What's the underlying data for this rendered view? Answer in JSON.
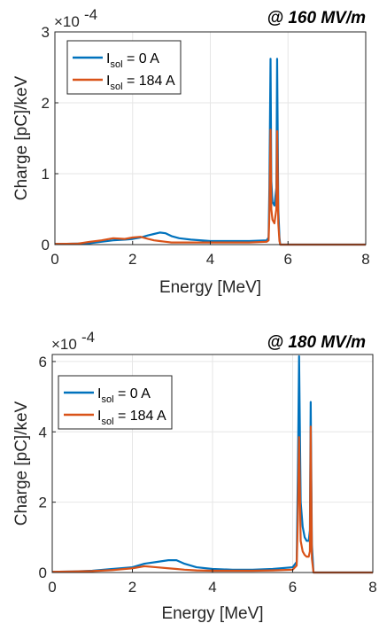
{
  "chart_data": [
    {
      "type": "line",
      "title": "@ 160 MV/m",
      "xlabel": "Energy [MeV]",
      "ylabel": "Charge [pC]/keV",
      "exponent_label": "×10",
      "exponent_power": "-4",
      "xlim": [
        0,
        8
      ],
      "ylim": [
        0,
        3
      ],
      "xticks": [
        "0",
        "2",
        "4",
        "6",
        "8"
      ],
      "yticks": [
        "0",
        "1",
        "2",
        "3"
      ],
      "grid": true,
      "legend_position": "top-left",
      "legend": [
        {
          "pre": "I",
          "sub": "sol",
          "post": " = 0 A",
          "color": "#0072BD"
        },
        {
          "pre": "I",
          "sub": "sol",
          "post": " = 184 A",
          "color": "#D95319"
        }
      ],
      "series": [
        {
          "name": "I_sol = 0 A",
          "color": "#0072BD",
          "x": [
            0,
            0.3,
            0.6,
            0.9,
            1.2,
            1.5,
            1.8,
            2.0,
            2.2,
            2.4,
            2.55,
            2.7,
            2.85,
            3.0,
            3.2,
            3.5,
            4.0,
            4.5,
            5.0,
            5.45,
            5.5,
            5.52,
            5.55,
            5.57,
            5.6,
            5.65,
            5.7,
            5.72,
            5.75,
            5.78,
            5.8,
            6.0,
            8.0
          ],
          "y": [
            0.01,
            0.012,
            0.015,
            0.02,
            0.04,
            0.06,
            0.07,
            0.08,
            0.1,
            0.13,
            0.15,
            0.17,
            0.16,
            0.12,
            0.09,
            0.07,
            0.05,
            0.05,
            0.05,
            0.06,
            0.1,
            0.8,
            2.62,
            0.9,
            0.6,
            0.55,
            0.8,
            2.62,
            0.5,
            0.1,
            0.0,
            0.0,
            0.0
          ]
        },
        {
          "name": "I_sol = 184 A",
          "color": "#D95319",
          "x": [
            0,
            0.3,
            0.6,
            0.9,
            1.2,
            1.5,
            1.8,
            2.0,
            2.2,
            2.4,
            2.55,
            2.7,
            2.85,
            3.0,
            3.2,
            3.5,
            4.0,
            4.5,
            5.0,
            5.45,
            5.5,
            5.52,
            5.55,
            5.57,
            5.6,
            5.65,
            5.7,
            5.72,
            5.75,
            5.78,
            5.8,
            6.0,
            8.0
          ],
          "y": [
            0.01,
            0.012,
            0.015,
            0.04,
            0.06,
            0.09,
            0.08,
            0.1,
            0.11,
            0.08,
            0.06,
            0.05,
            0.04,
            0.03,
            0.03,
            0.03,
            0.03,
            0.03,
            0.03,
            0.04,
            0.06,
            0.4,
            1.62,
            0.5,
            0.35,
            0.3,
            0.5,
            1.6,
            0.3,
            0.05,
            0.0,
            0.0,
            0.0
          ]
        }
      ]
    },
    {
      "type": "line",
      "title": "@ 180 MV/m",
      "xlabel": "Energy [MeV]",
      "ylabel": "Charge [pC]/keV",
      "exponent_label": "×10",
      "exponent_power": "-4",
      "xlim": [
        0,
        8
      ],
      "ylim": [
        0,
        6.2
      ],
      "xticks": [
        "0",
        "2",
        "4",
        "6",
        "8"
      ],
      "yticks": [
        "0",
        "2",
        "4",
        "6"
      ],
      "grid": true,
      "legend_position": "top-left",
      "legend": [
        {
          "pre": "I",
          "sub": "sol",
          "post": " = 0 A",
          "color": "#0072BD"
        },
        {
          "pre": "I",
          "sub": "sol",
          "post": " = 184 A",
          "color": "#D95319"
        }
      ],
      "series": [
        {
          "name": "I_sol = 0 A",
          "color": "#0072BD",
          "x": [
            0,
            0.5,
            1.0,
            1.5,
            2.0,
            2.3,
            2.6,
            2.9,
            3.1,
            3.3,
            3.6,
            4.0,
            4.5,
            5.0,
            5.5,
            6.0,
            6.1,
            6.13,
            6.16,
            6.2,
            6.25,
            6.3,
            6.35,
            6.4,
            6.43,
            6.45,
            6.48,
            6.52,
            6.6,
            8.0
          ],
          "y": [
            0.02,
            0.03,
            0.05,
            0.1,
            0.15,
            0.25,
            0.3,
            0.35,
            0.35,
            0.25,
            0.15,
            0.1,
            0.08,
            0.08,
            0.1,
            0.15,
            0.3,
            2.8,
            6.15,
            2.0,
            1.3,
            1.0,
            0.9,
            0.9,
            1.2,
            4.85,
            0.8,
            0.0,
            0.0,
            0.0
          ]
        },
        {
          "name": "I_sol = 184 A",
          "color": "#D95319",
          "x": [
            0,
            0.5,
            1.0,
            1.5,
            2.0,
            2.3,
            2.6,
            2.9,
            3.1,
            3.3,
            3.6,
            4.0,
            4.5,
            5.0,
            5.5,
            6.0,
            6.1,
            6.13,
            6.16,
            6.2,
            6.25,
            6.3,
            6.35,
            6.4,
            6.43,
            6.45,
            6.48,
            6.52,
            6.6,
            8.0
          ],
          "y": [
            0.02,
            0.03,
            0.04,
            0.07,
            0.12,
            0.18,
            0.15,
            0.12,
            0.1,
            0.08,
            0.06,
            0.05,
            0.05,
            0.05,
            0.06,
            0.08,
            0.2,
            1.5,
            3.85,
            0.9,
            0.6,
            0.5,
            0.45,
            0.45,
            0.6,
            4.15,
            0.4,
            0.0,
            0.0,
            0.0
          ]
        }
      ]
    }
  ]
}
